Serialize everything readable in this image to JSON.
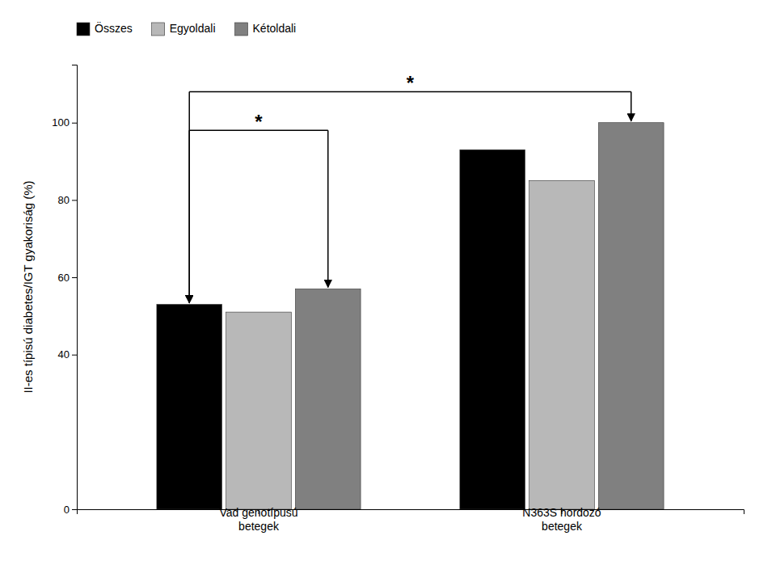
{
  "chart_data": {
    "type": "bar",
    "y_label": "II-es típisú diabetes/IGT gyakoriság (%)",
    "categories": [
      "Vad genotípusú\nbetegek",
      "N363S hordozó\nbetegek"
    ],
    "series": [
      {
        "name": "Összes",
        "color": "#000000",
        "values": [
          53,
          93
        ]
      },
      {
        "name": "Egyoldali",
        "color": "#b8b8b8",
        "values": [
          51,
          85
        ]
      },
      {
        "name": "Kétoldali",
        "color": "#808080",
        "values": [
          57,
          100
        ]
      }
    ],
    "ylim": [
      0,
      115
    ],
    "yticks": [
      0,
      40,
      60,
      80,
      100
    ],
    "grid": false,
    "legend": "upper left",
    "annotations": [
      {
        "text": "*",
        "y": 98,
        "category1": 0,
        "series1": 0,
        "category2": 0,
        "series2": 2
      },
      {
        "text": "*",
        "y": 108,
        "category1": 0,
        "series1": 0,
        "category2": 1,
        "series2": 2
      }
    ]
  }
}
